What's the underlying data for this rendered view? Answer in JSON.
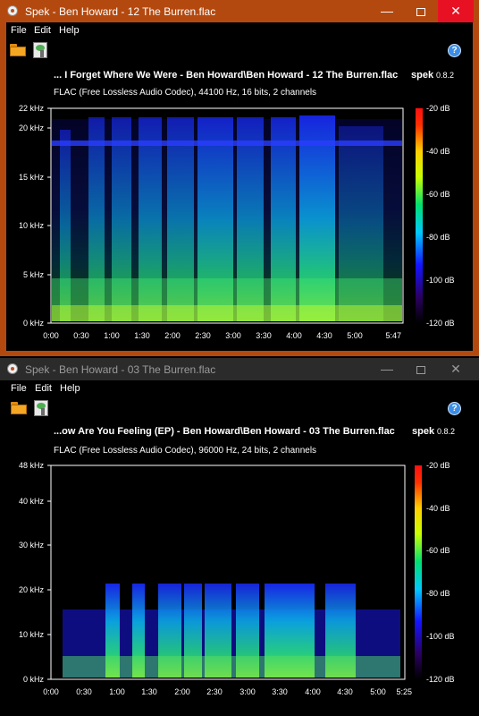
{
  "windows": [
    {
      "title": "Spek - Ben Howard - 12 The Burren.flac",
      "active": true,
      "menu": [
        "File",
        "Edit",
        "Help"
      ],
      "file_title": "... I Forget Where We Were - Ben Howard\\Ben Howard - 12 The Burren.flac",
      "app_name": "spek",
      "app_version": "0.8.2",
      "format_info": "FLAC (Free Lossless Audio Codec), 44100 Hz, 16 bits, 2 channels",
      "y_ticks": [
        "22 kHz",
        "20 kHz",
        "15 kHz",
        "10 kHz",
        "5 kHz",
        "0 kHz"
      ],
      "x_ticks": [
        "0:00",
        "0:30",
        "1:00",
        "1:30",
        "2:00",
        "2:30",
        "3:00",
        "3:30",
        "4:00",
        "4:30",
        "5:00",
        "5:47"
      ],
      "db_ticks": [
        "-20 dB",
        "-40 dB",
        "-60 dB",
        "-80 dB",
        "-100 dB",
        "-120 dB"
      ]
    },
    {
      "title": "Spek - Ben Howard - 03 The Burren.flac",
      "active": false,
      "menu": [
        "File",
        "Edit",
        "Help"
      ],
      "file_title": "...ow Are You Feeling (EP) - Ben Howard\\Ben Howard - 03 The Burren.flac",
      "app_name": "spek",
      "app_version": "0.8.2",
      "format_info": "FLAC (Free Lossless Audio Codec), 96000 Hz, 24 bits, 2 channels",
      "y_ticks": [
        "48 kHz",
        "40 kHz",
        "30 kHz",
        "20 kHz",
        "10 kHz",
        "0 kHz"
      ],
      "x_ticks": [
        "0:00",
        "0:30",
        "1:00",
        "1:30",
        "2:00",
        "2:30",
        "3:00",
        "3:30",
        "4:00",
        "4:30",
        "5:00",
        "5:25"
      ],
      "db_ticks": [
        "-20 dB",
        "-40 dB",
        "-60 dB",
        "-80 dB",
        "-100 dB",
        "-120 dB"
      ]
    }
  ],
  "colors": {
    "active_titlebar": "#b4490f",
    "inactive_titlebar": "#2b2b2b",
    "close_hover": "#e81123"
  }
}
